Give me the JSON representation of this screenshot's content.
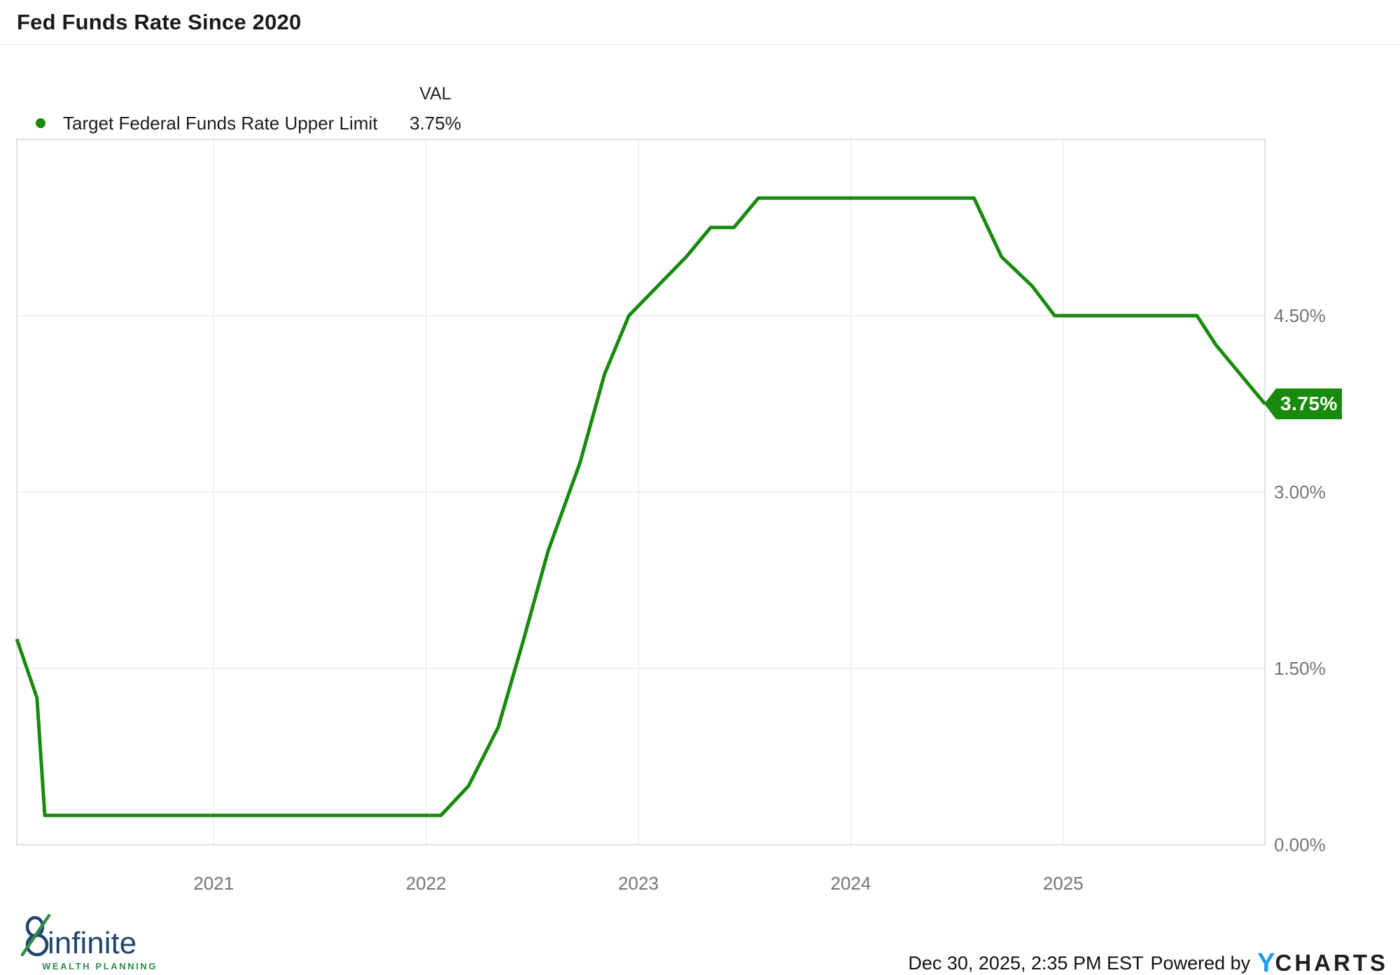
{
  "header": {
    "title": "Fed Funds Rate Since 2020"
  },
  "legend": {
    "val_header": "VAL",
    "series_label": "Target Federal Funds Rate Upper Limit",
    "series_value": "3.75%",
    "dot_color": "#188a0e"
  },
  "chart_data": {
    "type": "line",
    "title": "Fed Funds Rate Since 2020",
    "xlabel": "",
    "ylabel": "Target Federal Funds Rate Upper Limit (%)",
    "xlim": [
      2020.073,
      2025.95
    ],
    "ylim": [
      0,
      6.0
    ],
    "grid": true,
    "legend_position": "top-left",
    "units": "%",
    "last_value_label": "3.75%",
    "y_ticks": [
      {
        "v": 0.0,
        "label": "0.00%"
      },
      {
        "v": 1.5,
        "label": "1.50%"
      },
      {
        "v": 3.0,
        "label": "3.00%"
      },
      {
        "v": 4.5,
        "label": "4.50%"
      }
    ],
    "x_ticks": [
      {
        "t": 2021,
        "label": "2021"
      },
      {
        "t": 2022,
        "label": "2022"
      },
      {
        "t": 2023,
        "label": "2023"
      },
      {
        "t": 2024,
        "label": "2024"
      },
      {
        "t": 2025,
        "label": "2025"
      }
    ],
    "series": [
      {
        "name": "Target Federal Funds Rate Upper Limit",
        "color": "#188a0e",
        "points": [
          [
            2020.073,
            1.75
          ],
          [
            2020.168,
            1.25
          ],
          [
            2020.205,
            0.25
          ],
          [
            2022.07,
            0.25
          ],
          [
            2022.2,
            0.5
          ],
          [
            2022.34,
            1.0
          ],
          [
            2022.46,
            1.75
          ],
          [
            2022.575,
            2.5
          ],
          [
            2022.725,
            3.25
          ],
          [
            2022.84,
            4.0
          ],
          [
            2022.955,
            4.5
          ],
          [
            2023.09,
            4.75
          ],
          [
            2023.225,
            5.0
          ],
          [
            2023.34,
            5.25
          ],
          [
            2023.45,
            5.25
          ],
          [
            2023.565,
            5.5
          ],
          [
            2024.58,
            5.5
          ],
          [
            2024.71,
            5.0
          ],
          [
            2024.855,
            4.75
          ],
          [
            2024.96,
            4.5
          ],
          [
            2025.63,
            4.5
          ],
          [
            2025.72,
            4.25
          ],
          [
            2025.835,
            4.0
          ],
          [
            2025.95,
            3.75
          ]
        ]
      }
    ]
  },
  "colors": {
    "line": "#188a0e",
    "badge_bg": "#188a0e",
    "badge_text": "#ffffff",
    "grid": "#ececec",
    "plot_border": "#d8d8d8",
    "axis_text": "#737373"
  },
  "footer": {
    "logo": {
      "word": "infinite",
      "tagline": "WEALTH PLANNING",
      "navy": "#20456e",
      "green": "#2e8b4a"
    },
    "timestamp": "Dec 30, 2025, 2:35 PM EST",
    "powered_by": "Powered by",
    "brand": {
      "y": "Y",
      "charts": "CHARTS",
      "y_color": "#1e9bf0",
      "text_color": "#1d1d22"
    }
  }
}
